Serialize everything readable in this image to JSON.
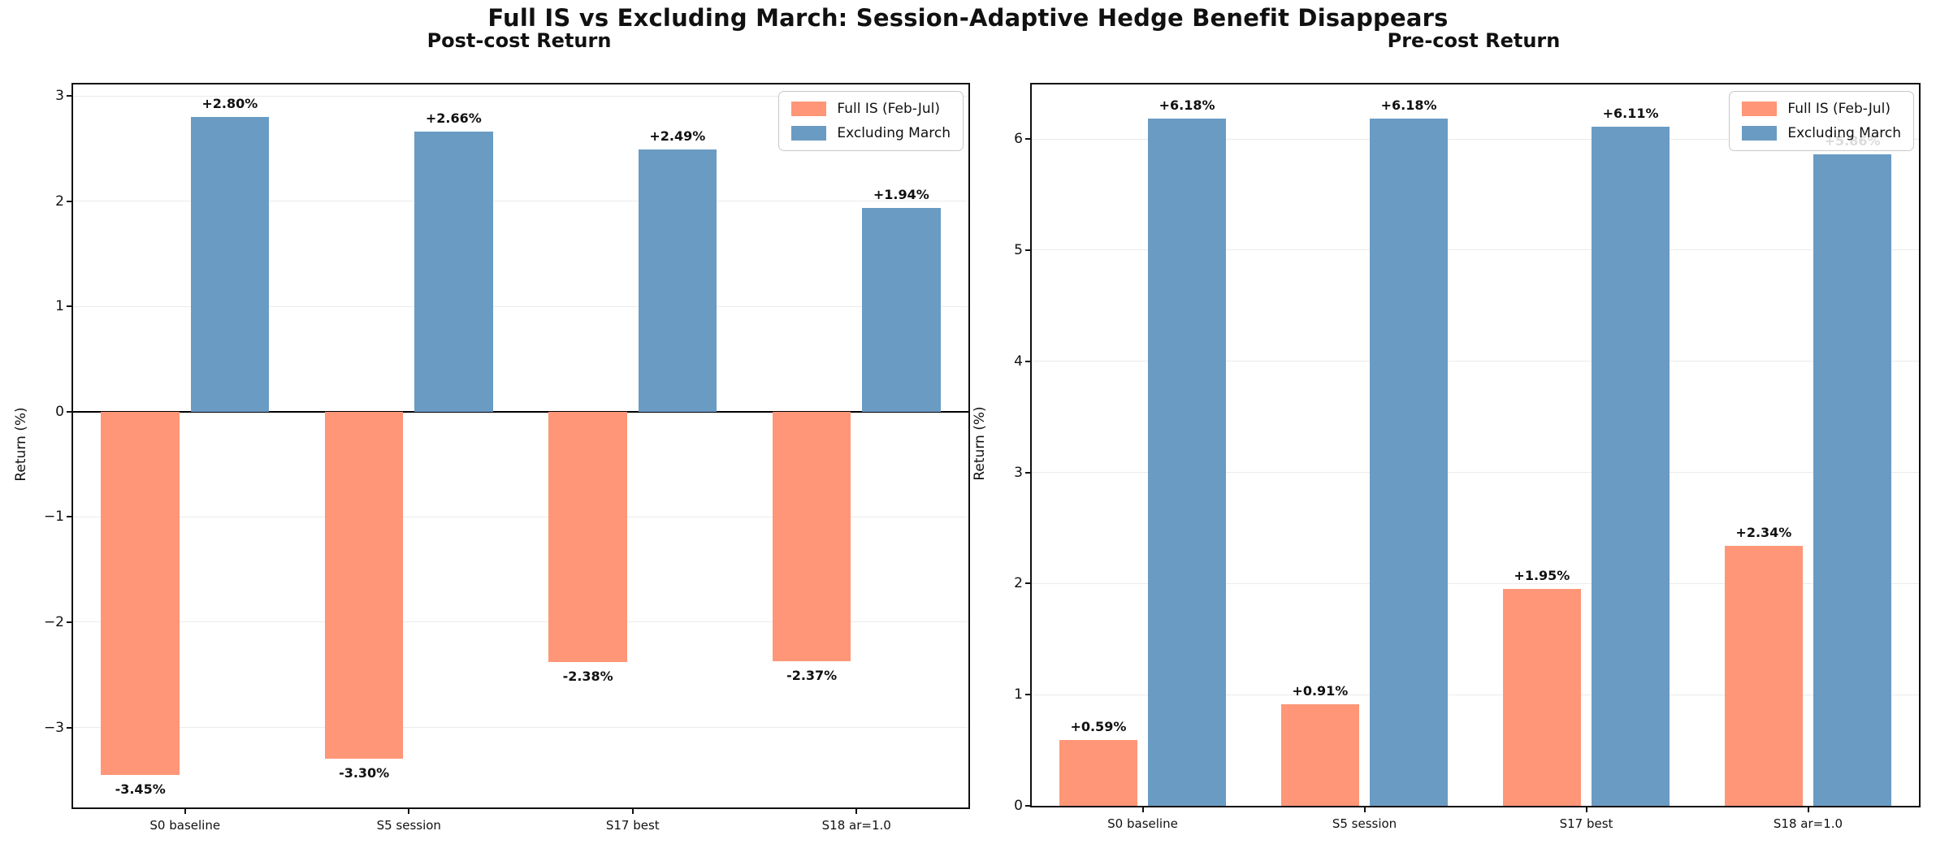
{
  "figure_title": "Full IS vs Excluding March: Session-Adaptive Hedge Benefit Disappears",
  "colors": {
    "full_is": "#FE9677",
    "excluding_march": "#6A9BC3",
    "grid": "#ebebeb",
    "axis": "#111111",
    "zero_line": "#000000"
  },
  "legend": {
    "position": "upper right",
    "items": [
      {
        "label": "Full IS (Feb-Jul)",
        "color": "#FE9677"
      },
      {
        "label": "Excluding March",
        "color": "#6A9BC3"
      }
    ]
  },
  "chart_data": [
    {
      "type": "bar",
      "title": "Post-cost Return",
      "ylabel": "Return (%)",
      "ylim": [
        -3.76,
        3.11
      ],
      "yticks": [
        3,
        2,
        1,
        0,
        -1,
        -2,
        -3
      ],
      "grid": true,
      "zero_line": true,
      "legend_position": "upper right",
      "categories": [
        "S0 baseline",
        "S5 session",
        "S17 best",
        "S18 ar=1.0"
      ],
      "series": [
        {
          "name": "Full IS (Feb-Jul)",
          "color": "#FE9677",
          "values": [
            -3.45,
            -3.3,
            -2.38,
            -2.37
          ],
          "labels": [
            "-3.45%",
            "-3.30%",
            "-2.38%",
            "-2.37%"
          ]
        },
        {
          "name": "Excluding March",
          "color": "#6A9BC3",
          "values": [
            2.8,
            2.66,
            2.49,
            1.94
          ],
          "labels": [
            "+2.80%",
            "+2.66%",
            "+2.49%",
            "+1.94%"
          ]
        }
      ]
    },
    {
      "type": "bar",
      "title": "Pre-cost Return",
      "ylabel": "Return (%)",
      "ylim": [
        0,
        6.49
      ],
      "yticks": [
        0,
        1,
        2,
        3,
        4,
        5,
        6
      ],
      "grid": true,
      "zero_line": false,
      "legend_position": "upper right",
      "categories": [
        "S0 baseline",
        "S5 session",
        "S17 best",
        "S18 ar=1.0"
      ],
      "series": [
        {
          "name": "Full IS (Feb-Jul)",
          "color": "#FE9677",
          "values": [
            0.59,
            0.91,
            1.95,
            2.34
          ],
          "labels": [
            "+0.59%",
            "+0.91%",
            "+1.95%",
            "+2.34%"
          ]
        },
        {
          "name": "Excluding March",
          "color": "#6A9BC3",
          "values": [
            6.18,
            6.18,
            6.11,
            5.86
          ],
          "labels": [
            "+6.18%",
            "+6.18%",
            "+6.11%",
            "+5.86%"
          ]
        }
      ]
    }
  ]
}
